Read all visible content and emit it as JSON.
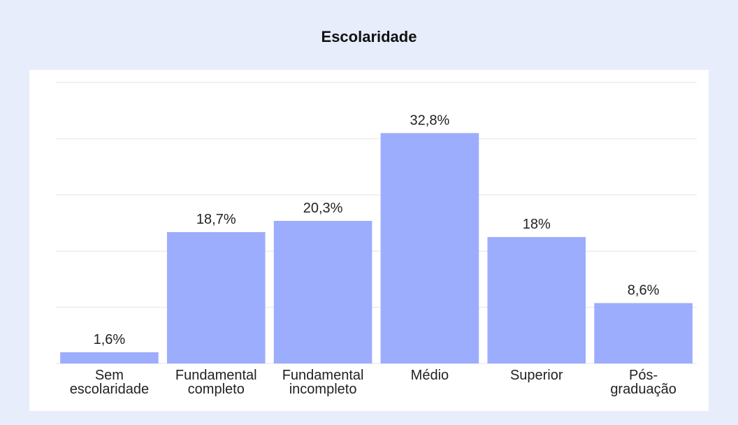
{
  "chart_data": {
    "type": "bar",
    "title": "Escolaridade",
    "categories": [
      "Sem escolaridade",
      "Fundamental completo",
      "Fundamental incompleto",
      "Médio",
      "Superior",
      "Pós-graduação"
    ],
    "values": [
      1.6,
      18.7,
      20.3,
      32.8,
      18,
      8.6
    ],
    "value_labels": [
      "1,6%",
      "18,7%",
      "20,3%",
      "32,8%",
      "18%",
      "8,6%"
    ],
    "color": "#9dadfd",
    "ylim": [
      0,
      40
    ],
    "yticks": [
      0,
      8,
      16,
      24,
      32,
      40
    ],
    "grid": true
  }
}
